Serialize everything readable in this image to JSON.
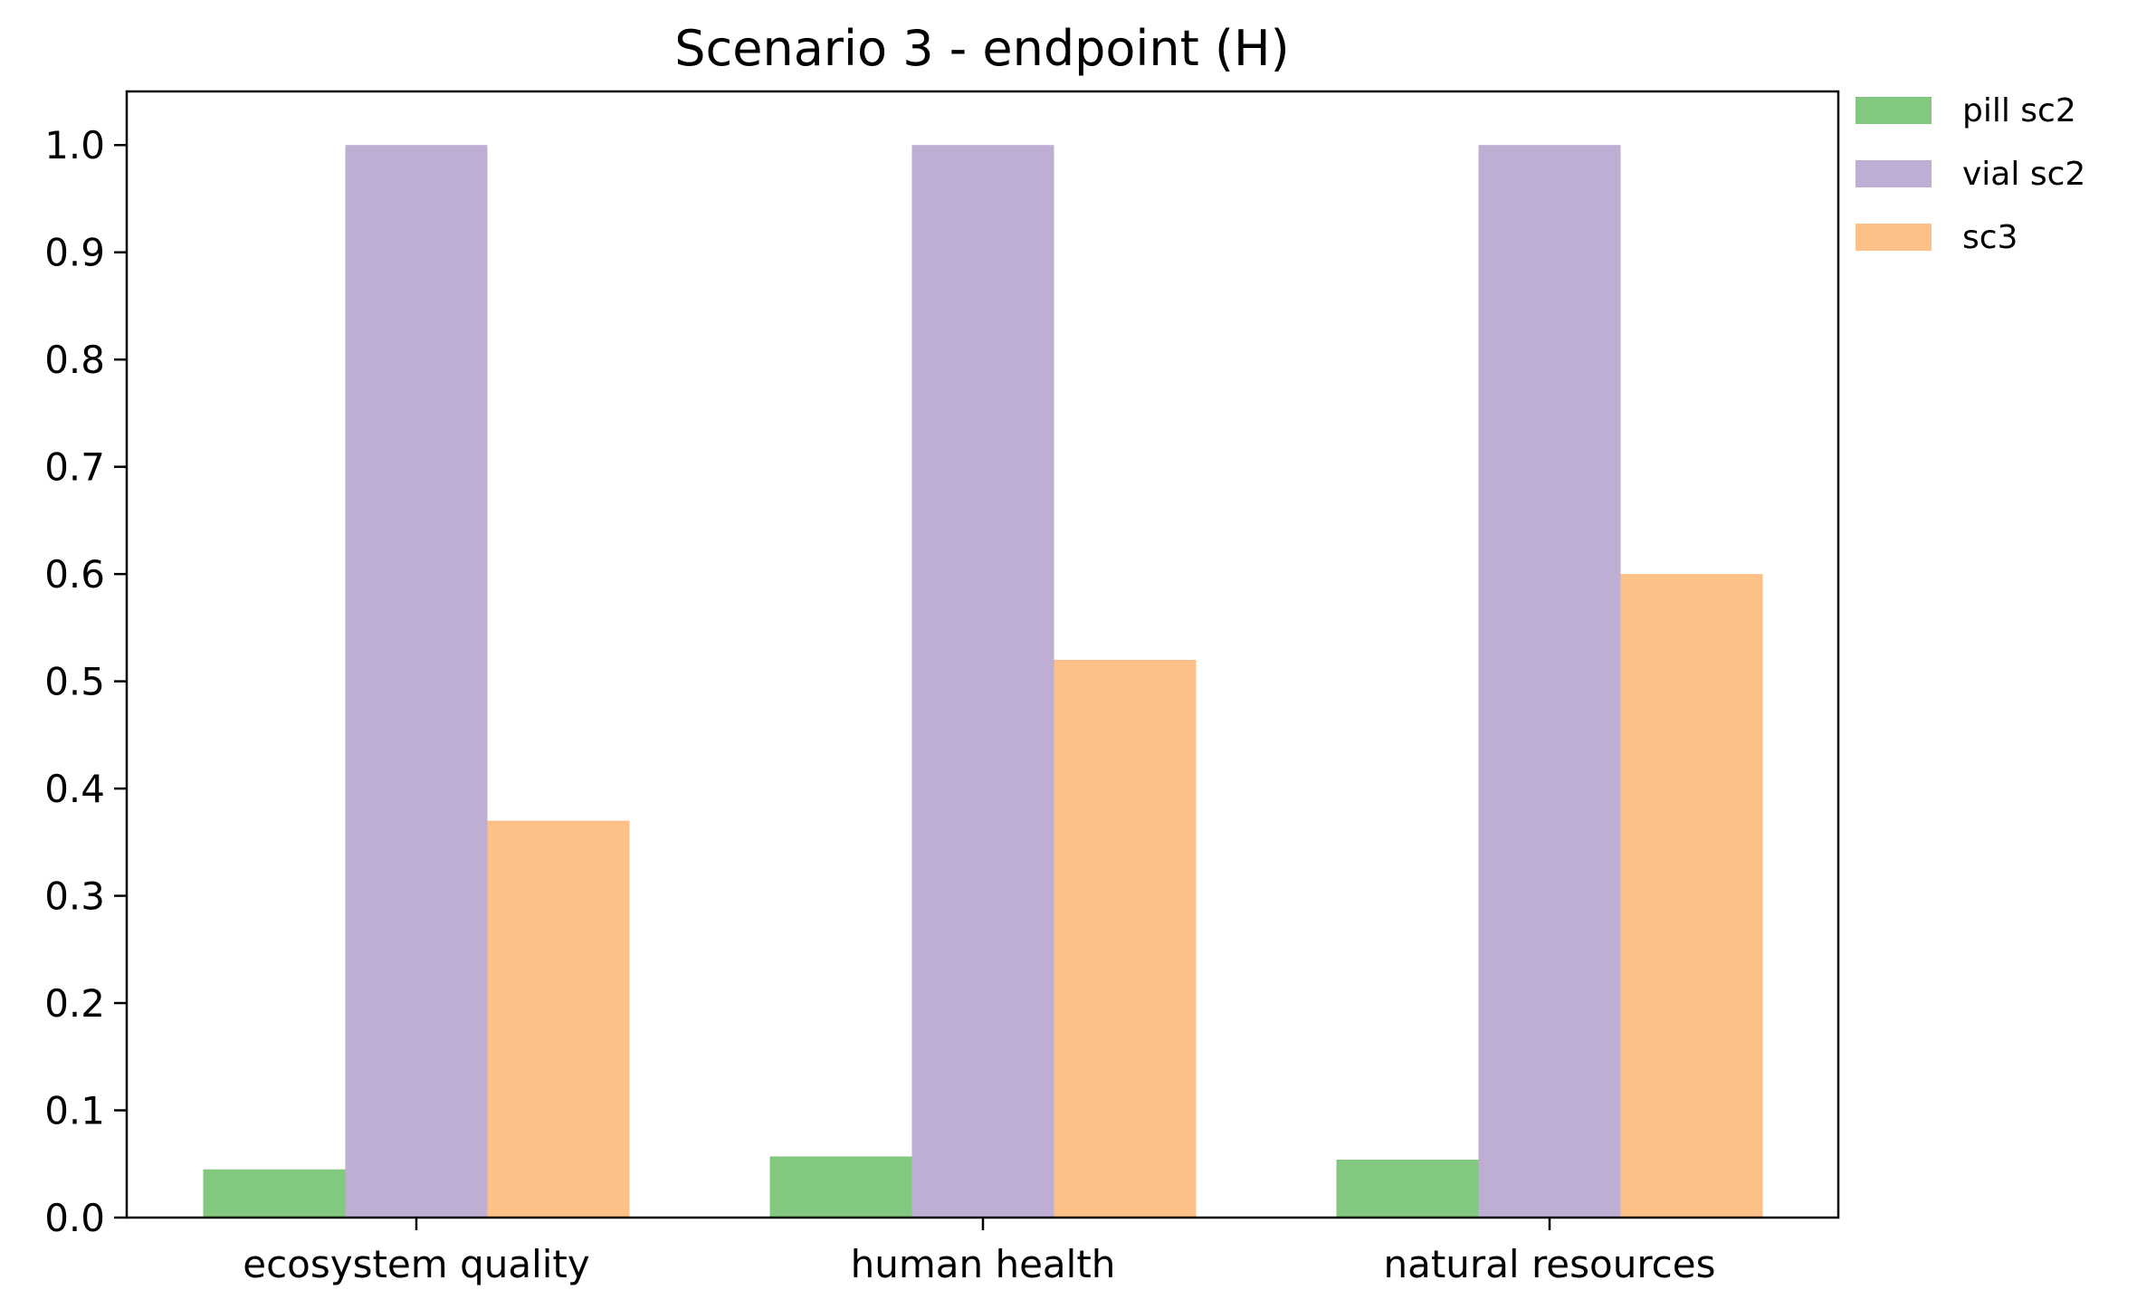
{
  "chart_data": {
    "type": "bar",
    "title": "Scenario 3 - endpoint (H)",
    "xlabel": "",
    "ylabel": "",
    "categories": [
      "ecosystem quality",
      "human health",
      "natural resources"
    ],
    "series": [
      {
        "name": "pill sc2",
        "values": [
          0.045,
          0.057,
          0.054
        ],
        "color": "#82c97f"
      },
      {
        "name": "vial sc2",
        "values": [
          1.0,
          1.0,
          1.0
        ],
        "color": "#beaed4"
      },
      {
        "name": "sc3",
        "values": [
          0.37,
          0.52,
          0.6
        ],
        "color": "#fdc086"
      }
    ],
    "ylim": [
      0,
      1.05
    ],
    "yticks": [
      "0.0",
      "0.1",
      "0.2",
      "0.3",
      "0.4",
      "0.5",
      "0.6",
      "0.7",
      "0.8",
      "0.9",
      "1.0"
    ],
    "grid": false,
    "legend_position": "outside top-right"
  }
}
